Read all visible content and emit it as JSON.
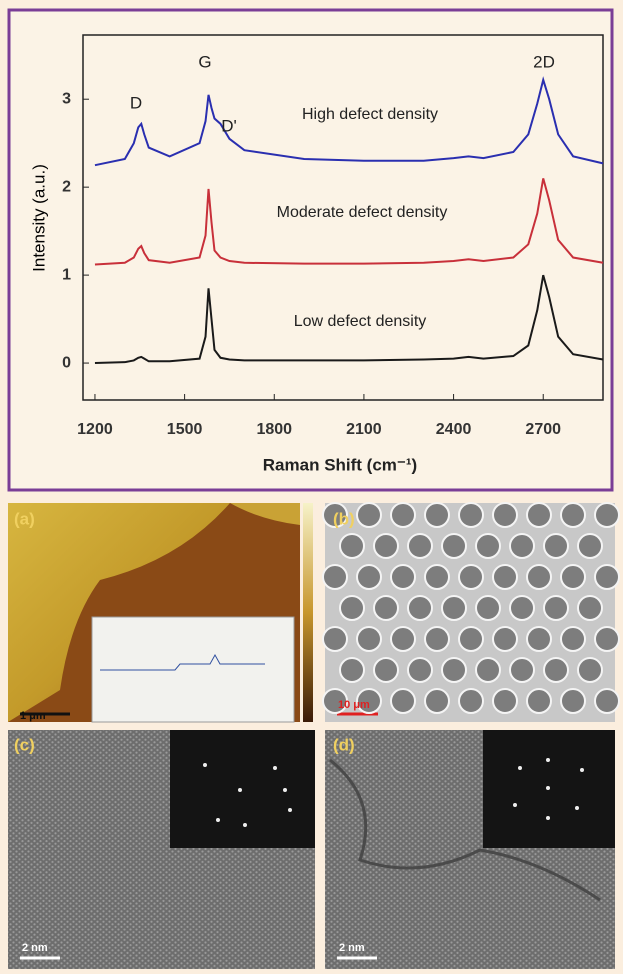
{
  "chart_data": {
    "type": "line",
    "ylabel": "Intensity (a.u.)",
    "xlabel": "Raman Shift (cm⁻¹)",
    "annotations": [
      "D",
      "G",
      "D'",
      "2D"
    ],
    "x": [
      1200,
      1300,
      1330,
      1345,
      1355,
      1365,
      1380,
      1450,
      1550,
      1570,
      1580,
      1590,
      1600,
      1620,
      1650,
      1700,
      1900,
      2100,
      2300,
      2400,
      2450,
      2500,
      2600,
      2650,
      2680,
      2700,
      2720,
      2750,
      2800,
      2900
    ],
    "series": [
      {
        "name": "Low defect density",
        "color": "#1a1a1a",
        "values": [
          0,
          0.01,
          0.03,
          0.06,
          0.07,
          0.05,
          0.02,
          0.02,
          0.05,
          0.3,
          0.85,
          0.5,
          0.15,
          0.06,
          0.04,
          0.03,
          0.03,
          0.03,
          0.04,
          0.05,
          0.07,
          0.05,
          0.08,
          0.2,
          0.6,
          1.0,
          0.75,
          0.3,
          0.1,
          0.04
        ]
      },
      {
        "name": "Moderate defect density",
        "color": "#c8303a",
        "values": [
          1.12,
          1.14,
          1.2,
          1.3,
          1.33,
          1.25,
          1.17,
          1.14,
          1.2,
          1.45,
          1.98,
          1.6,
          1.28,
          1.2,
          1.16,
          1.14,
          1.13,
          1.13,
          1.14,
          1.16,
          1.18,
          1.16,
          1.2,
          1.35,
          1.7,
          2.1,
          1.85,
          1.4,
          1.2,
          1.14
        ]
      },
      {
        "name": "High defect density",
        "color": "#2a2fb0",
        "values": [
          2.25,
          2.32,
          2.5,
          2.68,
          2.72,
          2.6,
          2.45,
          2.35,
          2.5,
          2.75,
          3.05,
          2.9,
          2.78,
          2.72,
          2.55,
          2.42,
          2.32,
          2.3,
          2.3,
          2.33,
          2.35,
          2.33,
          2.4,
          2.6,
          2.95,
          3.22,
          3.0,
          2.6,
          2.35,
          2.27
        ]
      }
    ],
    "xlim": [
      1160,
      2900
    ],
    "ylim": [
      -0.42,
      3.73
    ],
    "xticks": [
      1200,
      1500,
      1800,
      2100,
      2400,
      2700
    ],
    "yticks": [
      0,
      1,
      2,
      3
    ]
  },
  "panels": [
    {
      "label": "(a)",
      "scale": "1 μm"
    },
    {
      "label": "(b)",
      "scale": "10 μm"
    },
    {
      "label": "(c)",
      "scale": "2 nm"
    },
    {
      "label": "(d)",
      "scale": "2 nm"
    }
  ]
}
